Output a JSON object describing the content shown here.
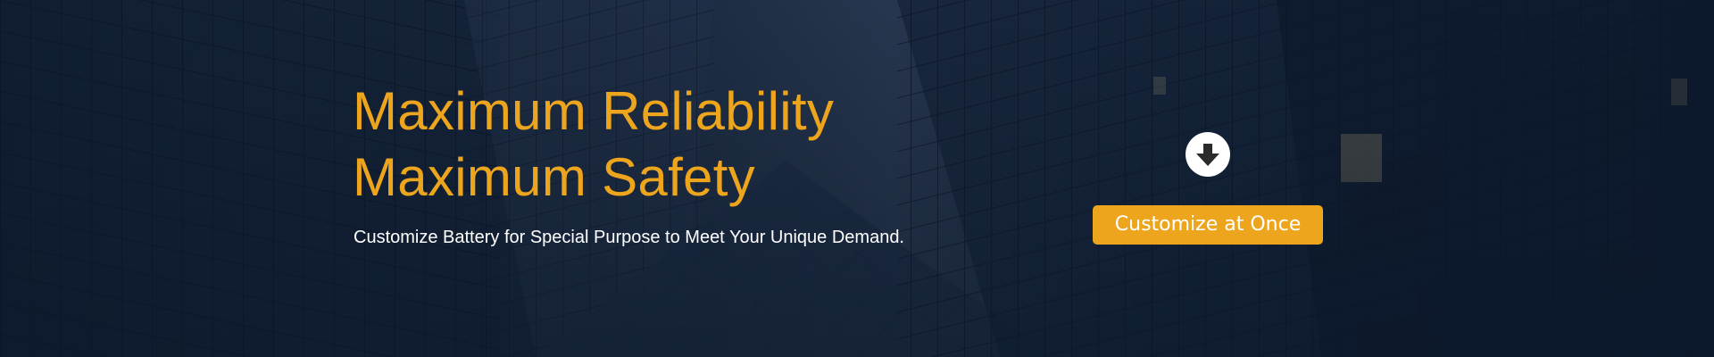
{
  "hero": {
    "headline_line1": "Maximum Reliability",
    "headline_line2": "Maximum Safety",
    "subtitle": "Customize Battery for Special Purpose to Meet Your Unique Demand.",
    "cta_label": "Customize at Once"
  },
  "icons": {
    "scroll_down": "arrow-down-circle-icon"
  },
  "colors": {
    "accent": "#eca51c",
    "background_dark": "#0d1a2d",
    "text_light": "#ffffff"
  }
}
